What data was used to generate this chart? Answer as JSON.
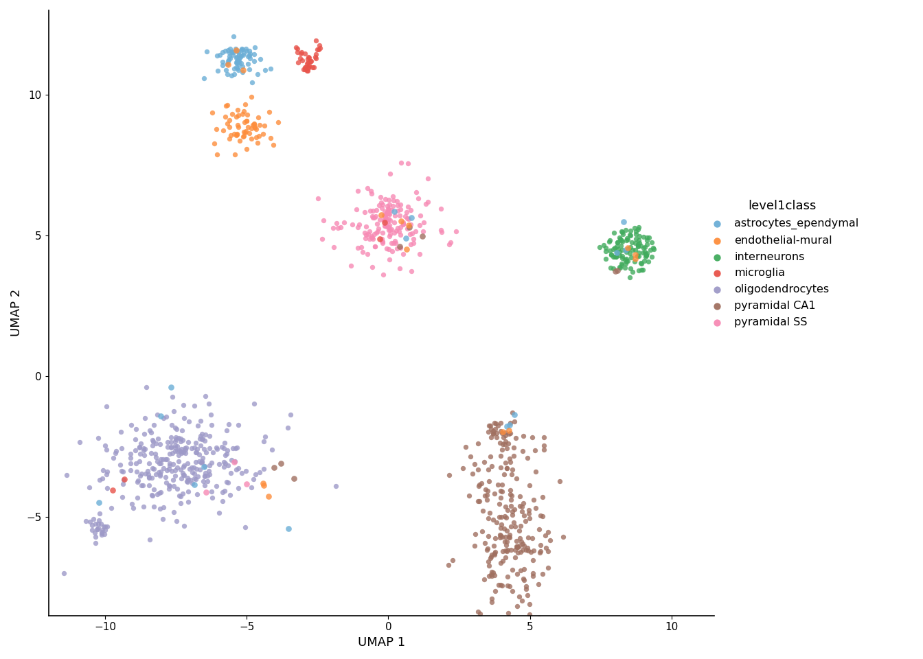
{
  "cell_types": [
    "astrocytes_ependymal",
    "endothelial-mural",
    "interneurons",
    "microglia",
    "oligodendrocytes",
    "pyramidal CA1",
    "pyramidal SS"
  ],
  "colors": {
    "astrocytes_ependymal": "#6BAED6",
    "endothelial-mural": "#FD8D3C",
    "interneurons": "#41AB5D",
    "microglia": "#E8534A",
    "oligodendrocytes": "#9E9AC8",
    "pyramidal CA1": "#A07060",
    "pyramidal SS": "#F78AB4"
  },
  "xlim": [
    -12.0,
    11.5
  ],
  "ylim": [
    -8.5,
    13.0
  ],
  "xlabel": "UMAP 1",
  "ylabel": "UMAP 2",
  "legend_title": "level1class",
  "label_fontsize": 13,
  "tick_fontsize": 11,
  "point_size": 28,
  "point_alpha": 0.8,
  "background_color": "#ffffff",
  "xticks": [
    -10,
    -5,
    0,
    5,
    10
  ],
  "yticks": [
    -5,
    0,
    5,
    10
  ]
}
